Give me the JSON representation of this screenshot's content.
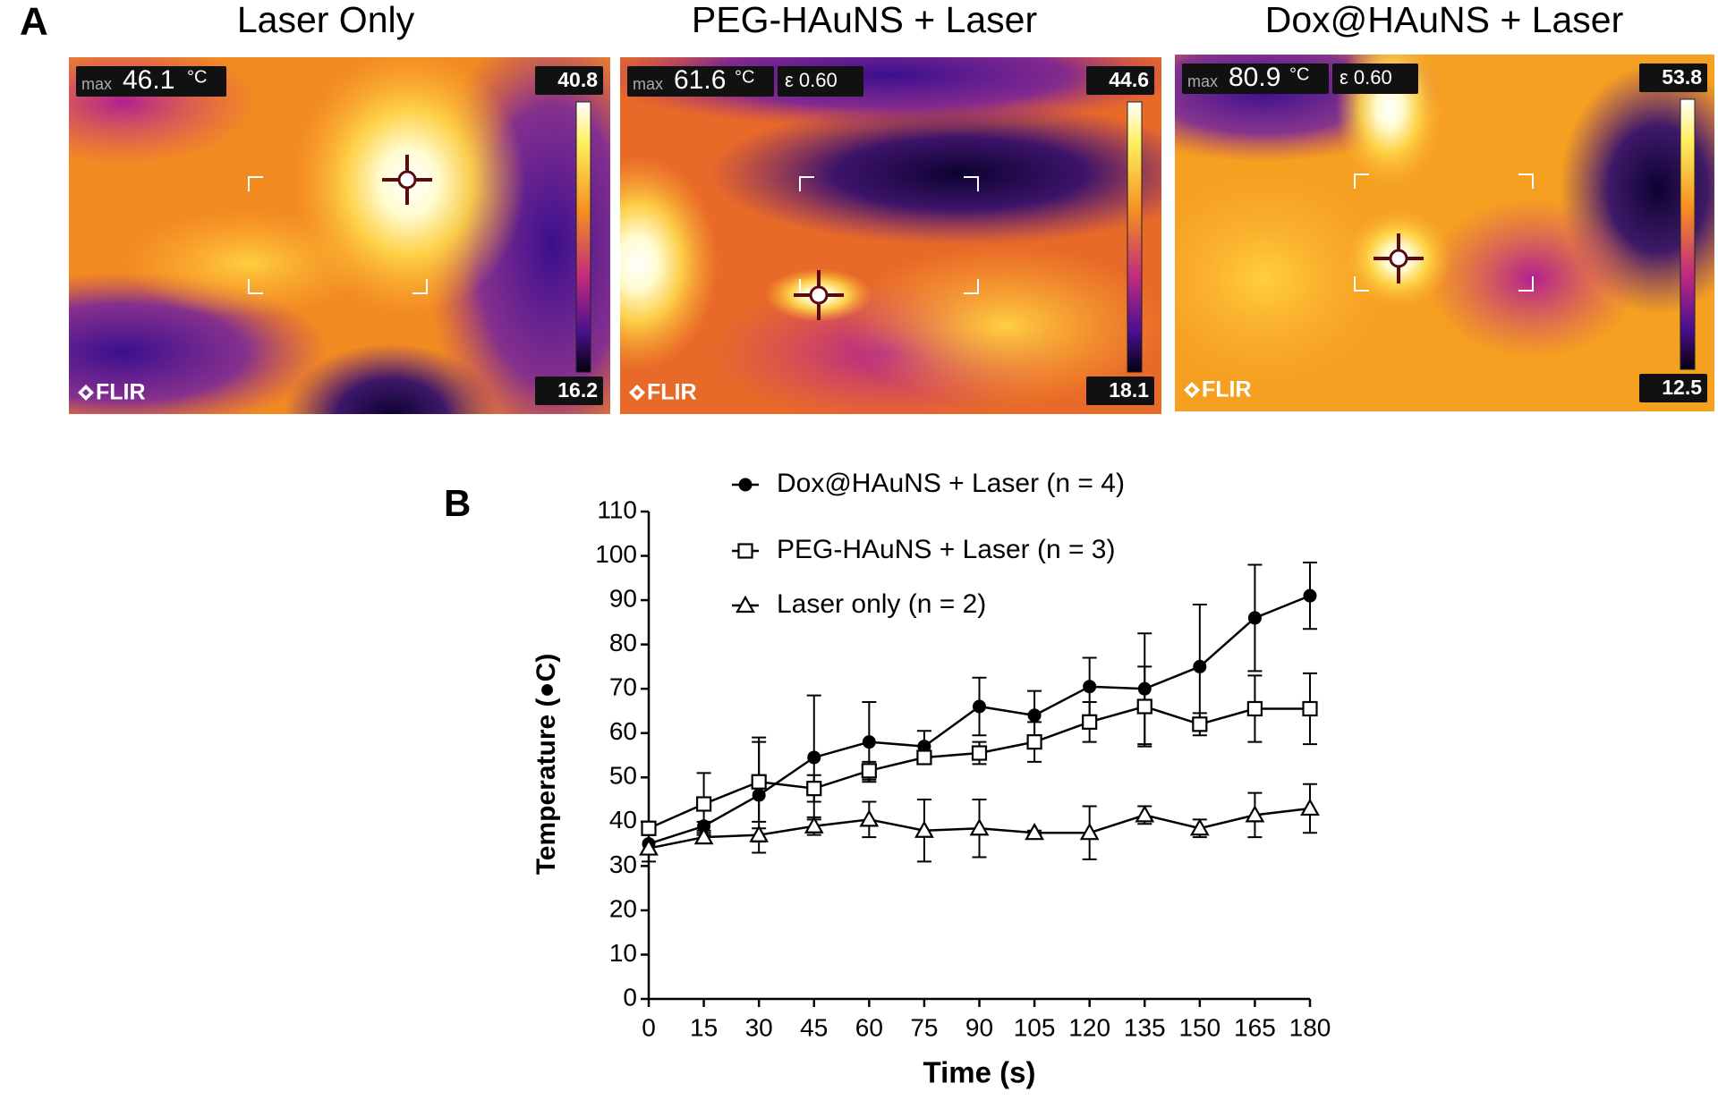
{
  "panel_a": {
    "label": "A",
    "panels": [
      {
        "title": "Laser Only",
        "max_label": "max",
        "max_value": "46.1",
        "unit": "°C",
        "scale_top": "40.8",
        "scale_bottom": "16.2",
        "brand": "FLIR"
      },
      {
        "title": "PEG-HAuNS + Laser",
        "max_label": "max",
        "max_value": "61.6",
        "unit": "°C",
        "emissivity": "ε 0.60",
        "scale_top": "44.6",
        "scale_bottom": "18.1",
        "brand": "FLIR"
      },
      {
        "title": "Dox@HAuNS + Laser",
        "max_label": "max",
        "max_value": "80.9",
        "unit": "°C",
        "emissivity": "ε 0.60",
        "scale_top": "53.8",
        "scale_bottom": "12.5",
        "brand": "FLIR"
      }
    ]
  },
  "chart_data": {
    "type": "line",
    "panel_label": "B",
    "x_label": "Time (s)",
    "y_label": "Temperature (●C)",
    "x": [
      0,
      15,
      30,
      45,
      60,
      75,
      90,
      105,
      120,
      135,
      150,
      165,
      180
    ],
    "xlim": [
      0,
      180
    ],
    "xticks": [
      0,
      15,
      30,
      45,
      60,
      75,
      90,
      105,
      120,
      135,
      150,
      165,
      180
    ],
    "ylim": [
      0,
      110
    ],
    "yticks": [
      0,
      10,
      20,
      30,
      40,
      50,
      60,
      70,
      80,
      90,
      100,
      110
    ],
    "grid": false,
    "legend": "top-left",
    "series": [
      {
        "name": "Dox@HAuNS + Laser (n = 4)",
        "color": "#000000",
        "marker": "circle",
        "values": [
          35,
          39,
          46,
          54.5,
          58,
          57,
          66,
          64,
          70.5,
          70,
          75,
          86,
          91
        ],
        "errors": [
          2,
          1,
          13,
          14,
          9,
          3.5,
          6.5,
          5.5,
          6.5,
          12.5,
          14,
          12,
          7.5
        ]
      },
      {
        "name": "PEG-HAuNS + Laser (n = 3)",
        "color": "#000000",
        "marker": "square",
        "values": [
          38.5,
          44,
          49,
          47.5,
          51.5,
          54.5,
          55.5,
          58,
          62.5,
          66,
          62,
          65.5,
          65.5
        ],
        "errors": [
          1.5,
          7,
          9,
          3,
          2,
          1.5,
          2.5,
          4.5,
          4.5,
          9,
          2.5,
          7.5,
          8
        ]
      },
      {
        "name": "Laser only (n = 2)",
        "color": "#000000",
        "marker": "triangle",
        "values": [
          34,
          36.5,
          37,
          39,
          40.5,
          38,
          38.5,
          37.5,
          37.5,
          41.5,
          38.5,
          41.5,
          43
        ],
        "errors": [
          3,
          1,
          1.5,
          2,
          4,
          7,
          6.5,
          0.5,
          6,
          2,
          2,
          5,
          5.5
        ]
      }
    ]
  }
}
